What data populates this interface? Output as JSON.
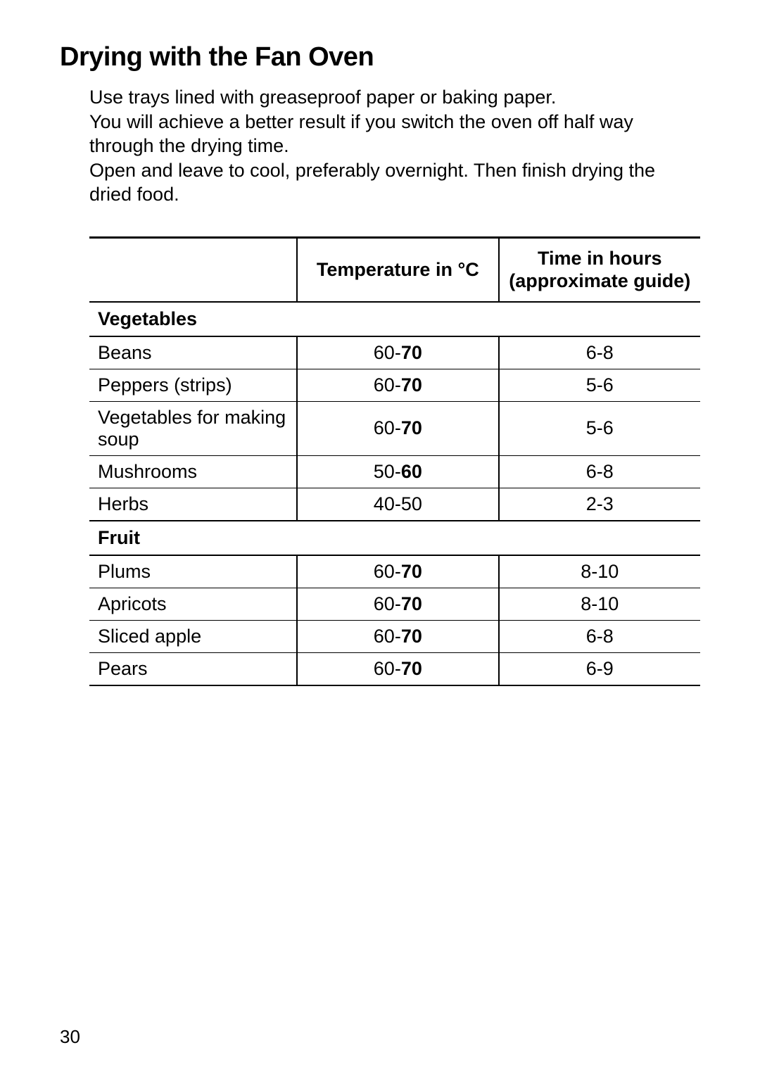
{
  "title": "Drying with the Fan Oven",
  "intro": [
    "Use trays lined with greaseproof paper or baking paper.",
    "You will achieve a better result if you switch the oven off half way through the drying time.",
    "Open and leave to cool, preferably overnight. Then finish drying the dried food."
  ],
  "table": {
    "columns": {
      "item": "",
      "temp": "Temperature in °C",
      "time_line1": "Time in hours",
      "time_line2": "(approximate guide)"
    },
    "sections": [
      {
        "heading": "Vegetables",
        "rows": [
          {
            "item": "Beans",
            "temp_lo": "60",
            "temp_hi": "70",
            "temp_bold_hi": true,
            "time": "6-8"
          },
          {
            "item": "Peppers (strips)",
            "temp_lo": "60",
            "temp_hi": "70",
            "temp_bold_hi": true,
            "time": "5-6"
          },
          {
            "item": "Vegetables for making soup",
            "temp_lo": "60",
            "temp_hi": "70",
            "temp_bold_hi": true,
            "time": "5-6"
          },
          {
            "item": "Mushrooms",
            "temp_lo": "50",
            "temp_hi": "60",
            "temp_bold_hi": true,
            "time": "6-8"
          },
          {
            "item": "Herbs",
            "temp_lo": "40",
            "temp_hi": "50",
            "temp_bold_hi": false,
            "time": "2-3"
          }
        ]
      },
      {
        "heading": "Fruit",
        "rows": [
          {
            "item": "Plums",
            "temp_lo": "60",
            "temp_hi": "70",
            "temp_bold_hi": true,
            "time": "8-10"
          },
          {
            "item": "Apricots",
            "temp_lo": "60",
            "temp_hi": "70",
            "temp_bold_hi": true,
            "time": "8-10"
          },
          {
            "item": "Sliced apple",
            "temp_lo": "60",
            "temp_hi": "70",
            "temp_bold_hi": true,
            "time": "6-8"
          },
          {
            "item": "Pears",
            "temp_lo": "60",
            "temp_hi": "70",
            "temp_bold_hi": true,
            "time": "6-9"
          }
        ]
      }
    ]
  },
  "page_number": "30"
}
